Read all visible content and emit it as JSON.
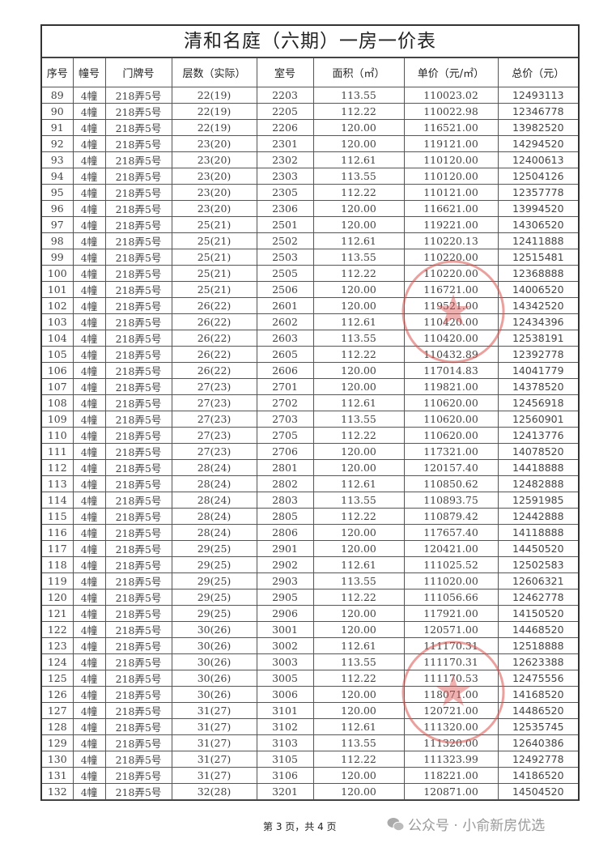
{
  "title": "清和名庭（六期）一房一价表",
  "headers": [
    "序号",
    "幢号",
    "门牌号",
    "层数（实际）",
    "室号",
    "面积（㎡）",
    "单价（元/㎡）",
    "总价（元）"
  ],
  "rows": [
    [
      "89",
      "4幢",
      "218弄5号",
      "22(19)",
      "2203",
      "113.55",
      "110023.02",
      "12493113"
    ],
    [
      "90",
      "4幢",
      "218弄5号",
      "22(19)",
      "2205",
      "112.22",
      "110022.98",
      "12346778"
    ],
    [
      "91",
      "4幢",
      "218弄5号",
      "22(19)",
      "2206",
      "120.00",
      "116521.00",
      "13982520"
    ],
    [
      "92",
      "4幢",
      "218弄5号",
      "23(20)",
      "2301",
      "120.00",
      "119121.00",
      "14294520"
    ],
    [
      "93",
      "4幢",
      "218弄5号",
      "23(20)",
      "2302",
      "112.61",
      "110120.00",
      "12400613"
    ],
    [
      "94",
      "4幢",
      "218弄5号",
      "23(20)",
      "2303",
      "113.55",
      "110120.00",
      "12504126"
    ],
    [
      "95",
      "4幢",
      "218弄5号",
      "23(20)",
      "2305",
      "112.22",
      "110121.00",
      "12357778"
    ],
    [
      "96",
      "4幢",
      "218弄5号",
      "23(20)",
      "2306",
      "120.00",
      "116621.00",
      "13994520"
    ],
    [
      "97",
      "4幢",
      "218弄5号",
      "25(21)",
      "2501",
      "120.00",
      "119221.00",
      "14306520"
    ],
    [
      "98",
      "4幢",
      "218弄5号",
      "25(21)",
      "2502",
      "112.61",
      "110220.13",
      "12411888"
    ],
    [
      "99",
      "4幢",
      "218弄5号",
      "25(21)",
      "2503",
      "113.55",
      "110220.00",
      "12515481"
    ],
    [
      "100",
      "4幢",
      "218弄5号",
      "25(21)",
      "2505",
      "112.22",
      "110220.00",
      "12368888"
    ],
    [
      "101",
      "4幢",
      "218弄5号",
      "25(21)",
      "2506",
      "120.00",
      "116721.00",
      "14006520"
    ],
    [
      "102",
      "4幢",
      "218弄5号",
      "26(22)",
      "2601",
      "120.00",
      "119521.00",
      "14342520"
    ],
    [
      "103",
      "4幢",
      "218弄5号",
      "26(22)",
      "2602",
      "112.61",
      "110420.00",
      "12434396"
    ],
    [
      "104",
      "4幢",
      "218弄5号",
      "26(22)",
      "2603",
      "113.55",
      "110420.00",
      "12538191"
    ],
    [
      "105",
      "4幢",
      "218弄5号",
      "26(22)",
      "2605",
      "112.22",
      "110432.89",
      "12392778"
    ],
    [
      "106",
      "4幢",
      "218弄5号",
      "26(22)",
      "2606",
      "120.00",
      "117014.83",
      "14041779"
    ],
    [
      "107",
      "4幢",
      "218弄5号",
      "27(23)",
      "2701",
      "120.00",
      "119821.00",
      "14378520"
    ],
    [
      "108",
      "4幢",
      "218弄5号",
      "27(23)",
      "2702",
      "112.61",
      "110620.00",
      "12456918"
    ],
    [
      "109",
      "4幢",
      "218弄5号",
      "27(23)",
      "2703",
      "113.55",
      "110620.00",
      "12560901"
    ],
    [
      "110",
      "4幢",
      "218弄5号",
      "27(23)",
      "2705",
      "112.22",
      "110620.00",
      "12413776"
    ],
    [
      "111",
      "4幢",
      "218弄5号",
      "27(23)",
      "2706",
      "120.00",
      "117321.00",
      "14078520"
    ],
    [
      "112",
      "4幢",
      "218弄5号",
      "28(24)",
      "2801",
      "120.00",
      "120157.40",
      "14418888"
    ],
    [
      "113",
      "4幢",
      "218弄5号",
      "28(24)",
      "2802",
      "112.61",
      "110850.62",
      "12482888"
    ],
    [
      "114",
      "4幢",
      "218弄5号",
      "28(24)",
      "2803",
      "113.55",
      "110893.75",
      "12591985"
    ],
    [
      "115",
      "4幢",
      "218弄5号",
      "28(24)",
      "2805",
      "112.22",
      "110879.42",
      "12442888"
    ],
    [
      "116",
      "4幢",
      "218弄5号",
      "28(24)",
      "2806",
      "120.00",
      "117657.40",
      "14118888"
    ],
    [
      "117",
      "4幢",
      "218弄5号",
      "29(25)",
      "2901",
      "120.00",
      "120421.00",
      "14450520"
    ],
    [
      "118",
      "4幢",
      "218弄5号",
      "29(25)",
      "2902",
      "112.61",
      "111025.52",
      "12502583"
    ],
    [
      "119",
      "4幢",
      "218弄5号",
      "29(25)",
      "2903",
      "113.55",
      "111020.00",
      "12606321"
    ],
    [
      "120",
      "4幢",
      "218弄5号",
      "29(25)",
      "2905",
      "112.22",
      "111056.66",
      "12462778"
    ],
    [
      "121",
      "4幢",
      "218弄5号",
      "29(25)",
      "2906",
      "120.00",
      "117921.00",
      "14150520"
    ],
    [
      "122",
      "4幢",
      "218弄5号",
      "30(26)",
      "3001",
      "120.00",
      "120571.00",
      "14468520"
    ],
    [
      "123",
      "4幢",
      "218弄5号",
      "30(26)",
      "3002",
      "112.61",
      "111170.31",
      "12518888"
    ],
    [
      "124",
      "4幢",
      "218弄5号",
      "30(26)",
      "3003",
      "113.55",
      "111170.31",
      "12623388"
    ],
    [
      "125",
      "4幢",
      "218弄5号",
      "30(26)",
      "3005",
      "112.22",
      "111170.53",
      "12475556"
    ],
    [
      "126",
      "4幢",
      "218弄5号",
      "30(26)",
      "3006",
      "120.00",
      "118071.00",
      "14168520"
    ],
    [
      "127",
      "4幢",
      "218弄5号",
      "31(27)",
      "3101",
      "120.00",
      "120721.00",
      "14486520"
    ],
    [
      "128",
      "4幢",
      "218弄5号",
      "31(27)",
      "3102",
      "112.61",
      "111320.00",
      "12535745"
    ],
    [
      "129",
      "4幢",
      "218弄5号",
      "31(27)",
      "3103",
      "113.55",
      "111320.00",
      "12640386"
    ],
    [
      "130",
      "4幢",
      "218弄5号",
      "31(27)",
      "3105",
      "112.22",
      "111323.99",
      "12492778"
    ],
    [
      "131",
      "4幢",
      "218弄5号",
      "31(27)",
      "3106",
      "120.00",
      "118221.00",
      "14186520"
    ],
    [
      "132",
      "4幢",
      "218弄5号",
      "32(28)",
      "3201",
      "120.00",
      "120871.00",
      "14504520"
    ]
  ],
  "footer": {
    "page_info": "第 3 页，共 4 页"
  },
  "watermark": {
    "text": "公众号 · 小俞新房优选",
    "icon": "wechat-icon"
  },
  "colors": {
    "stamp": "#d9534f"
  }
}
